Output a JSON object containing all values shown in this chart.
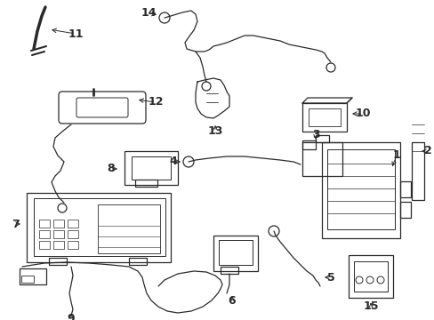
{
  "background_color": "#ffffff",
  "line_color": "#2a2a2a",
  "fig_width": 4.89,
  "fig_height": 3.6,
  "dpi": 100,
  "label_fontsize": 9,
  "lw": 0.9
}
